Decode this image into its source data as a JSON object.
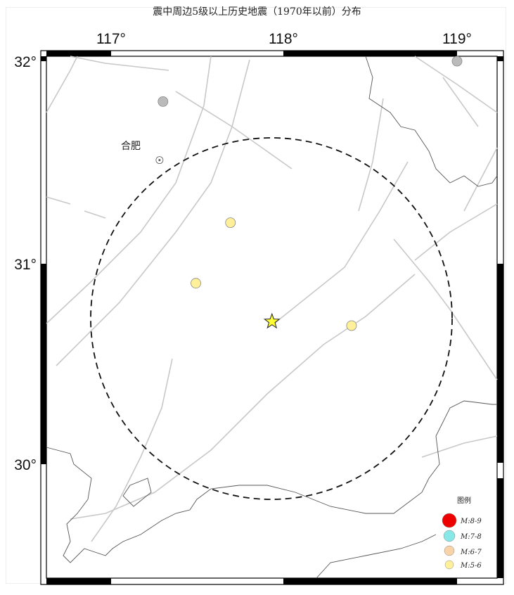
{
  "title": "震中周边5级以上历史地震（1970年以前）分布",
  "map": {
    "lon_ticks": [
      "117°",
      "118°",
      "119°"
    ],
    "lat_ticks": [
      "32°",
      "31°",
      "30°"
    ],
    "city": {
      "name": "合肥",
      "lon": 117.28,
      "lat": 31.51
    },
    "epicenter": {
      "lon": 117.93,
      "lat": 30.71,
      "color": "#ffff33"
    },
    "events": [
      {
        "lon": 117.69,
        "lat": 31.2,
        "class": "M:5-6"
      },
      {
        "lon": 117.49,
        "lat": 30.9,
        "class": "M:5-6"
      },
      {
        "lon": 118.39,
        "lat": 30.69,
        "class": "M:5-6"
      },
      {
        "lon": 117.3,
        "lat": 31.8,
        "class": "other"
      },
      {
        "lon": 119.0,
        "lat": 32.0,
        "class": "other"
      }
    ]
  },
  "legend": {
    "title": "图例",
    "items": [
      {
        "label": "M:8-9",
        "color": "#ee0000"
      },
      {
        "label": "M:7-8",
        "color": "#88e8e8"
      },
      {
        "label": "M:6-7",
        "color": "#f8d4a8"
      },
      {
        "label": "M:5-6",
        "color": "#fff099"
      }
    ],
    "other_color": "#bbbbbb"
  }
}
